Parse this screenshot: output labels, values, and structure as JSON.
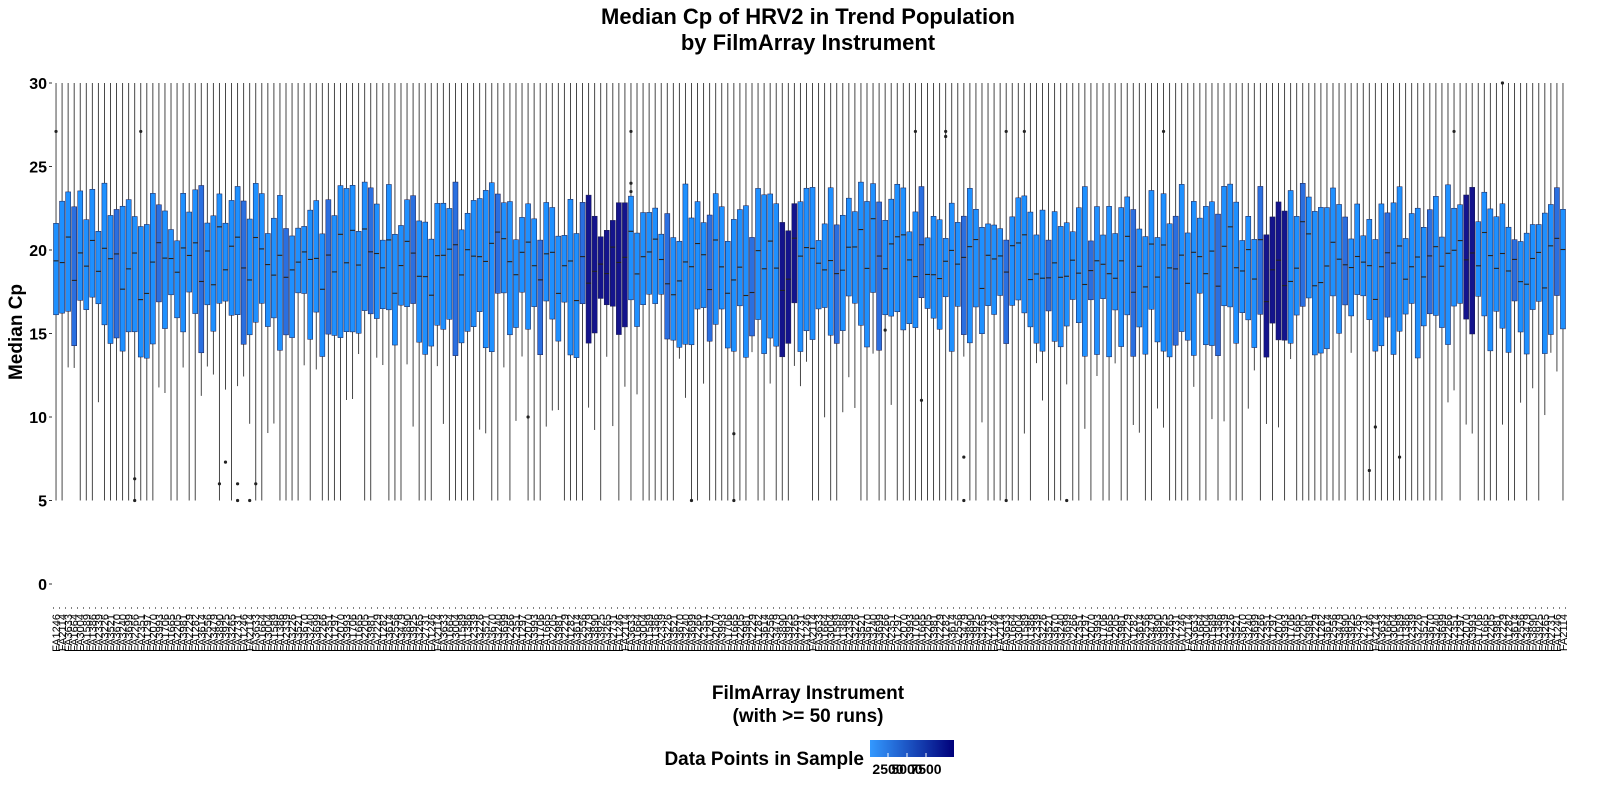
{
  "chart_data": {
    "type": "boxplot",
    "title_line1": "Median Cp of HRV2 in Trend Population",
    "title_line2": "by FilmArray Instrument",
    "xlabel_line1": "FilmArray Instrument",
    "xlabel_line2": "(with >= 50 runs)",
    "ylabel": "Median Cp",
    "ylim": [
      0,
      30
    ],
    "yticks": [
      "0",
      "5",
      "10",
      "15",
      "20",
      "25",
      "30"
    ],
    "instrument_count": 250,
    "visible_x_labels": [
      "FA1246",
      "FA2114",
      "FA3633",
      "FA1664",
      "FA3004",
      "FA1589",
      "FA1386",
      "FA2339",
      "FA3226",
      "FA3521",
      "FA3670",
      "FA3240",
      "FA3699",
      "FA2266",
      "FA2351",
      "FA1297",
      "FA2070",
      "FA3993",
      "FA1706",
      "FA1665",
      "FA2205",
      "FA3981",
      "FA2229",
      "FA1282",
      "FA3614",
      "FA2556",
      "FA3479",
      "FA3890",
      "FA3925",
      "FA3265",
      "FA2731"
    ],
    "legend": {
      "title": "Data Points in Sample",
      "tick_labels": [
        "2500",
        "5000",
        "7500"
      ],
      "color_low": "#3399ff",
      "color_high": "#00007a"
    },
    "box_color": "#1e90ff",
    "dark_box_color": "#14148c",
    "whisker_max": 30,
    "whisker_min": 5,
    "outliers": [
      {
        "x": 0,
        "y": 27.1
      },
      {
        "x": 14,
        "y": 27.1
      },
      {
        "x": 13,
        "y": 5.0
      },
      {
        "x": 13,
        "y": 6.3
      },
      {
        "x": 27,
        "y": 6.0
      },
      {
        "x": 28,
        "y": 7.3
      },
      {
        "x": 30,
        "y": 5.0
      },
      {
        "x": 30,
        "y": 6.0
      },
      {
        "x": 32,
        "y": 5.0
      },
      {
        "x": 33,
        "y": 6.0
      },
      {
        "x": 78,
        "y": 10.0
      },
      {
        "x": 95,
        "y": 27.1
      },
      {
        "x": 95,
        "y": 24.0
      },
      {
        "x": 95,
        "y": 23.5
      },
      {
        "x": 105,
        "y": 5.0
      },
      {
        "x": 112,
        "y": 5.0
      },
      {
        "x": 137,
        "y": 15.2
      },
      {
        "x": 142,
        "y": 27.1
      },
      {
        "x": 143,
        "y": 11.0
      },
      {
        "x": 147,
        "y": 27.1
      },
      {
        "x": 147,
        "y": 26.8
      },
      {
        "x": 150,
        "y": 7.6
      },
      {
        "x": 150,
        "y": 5.0
      },
      {
        "x": 157,
        "y": 5.0
      },
      {
        "x": 160,
        "y": 27.1
      },
      {
        "x": 157,
        "y": 27.1
      },
      {
        "x": 167,
        "y": 5.0
      },
      {
        "x": 183,
        "y": 27.1
      },
      {
        "x": 217,
        "y": 6.8
      },
      {
        "x": 218,
        "y": 9.4
      },
      {
        "x": 231,
        "y": 27.1
      },
      {
        "x": 222,
        "y": 7.6
      },
      {
        "x": 239,
        "y": 30.0
      },
      {
        "x": 112,
        "y": 9.0
      }
    ]
  }
}
